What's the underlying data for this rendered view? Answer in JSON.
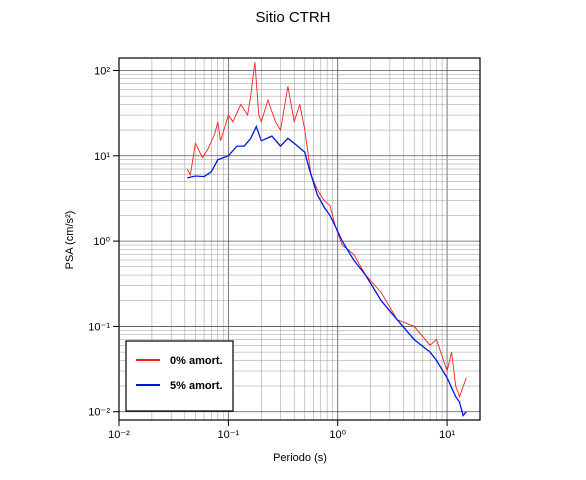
{
  "chart_data": {
    "type": "line",
    "title": "Sitio CTRH",
    "x_label": "Periodo (s)",
    "y_label": "PSA (cm/s²)",
    "log_x": true,
    "log_y": true,
    "grid": "major+minor",
    "legend": "lower left",
    "xlim": [
      0.01,
      20
    ],
    "ylim": [
      0.008,
      140
    ],
    "xticks": [
      {
        "value": 0.01,
        "label": "10⁻²"
      },
      {
        "value": 0.1,
        "label": "10⁻¹"
      },
      {
        "value": 1,
        "label": "10⁰"
      },
      {
        "value": 10,
        "label": "10¹"
      }
    ],
    "yticks": [
      {
        "value": 0.01,
        "label": "10⁻²"
      },
      {
        "value": 0.1,
        "label": "10⁻¹"
      },
      {
        "value": 1,
        "label": "10⁰"
      },
      {
        "value": 10,
        "label": "10¹"
      },
      {
        "value": 100,
        "label": "10²"
      }
    ],
    "series": [
      {
        "name": "0% amort.",
        "color": "#ff2020",
        "x": [
          0.042,
          0.045,
          0.05,
          0.058,
          0.065,
          0.075,
          0.08,
          0.085,
          0.1,
          0.11,
          0.13,
          0.15,
          0.16,
          0.175,
          0.19,
          0.2,
          0.23,
          0.27,
          0.3,
          0.35,
          0.4,
          0.45,
          0.5,
          0.57,
          0.65,
          0.75,
          0.85,
          0.95,
          1.1,
          1.4,
          1.8,
          2.5,
          3.5,
          5,
          7,
          8,
          10,
          11,
          12,
          13,
          15
        ],
        "values": [
          7,
          6,
          14,
          9.5,
          12,
          18,
          25,
          15,
          30,
          25,
          40,
          30,
          50,
          125,
          30,
          25,
          45,
          25,
          20,
          65,
          25,
          40,
          20,
          6,
          4,
          3,
          2.6,
          1.5,
          0.9,
          0.7,
          0.4,
          0.25,
          0.12,
          0.1,
          0.06,
          0.07,
          0.03,
          0.05,
          0.02,
          0.015,
          0.025
        ]
      },
      {
        "name": "5% amort.",
        "color": "#0018e0",
        "x": [
          0.042,
          0.05,
          0.06,
          0.07,
          0.08,
          0.1,
          0.12,
          0.14,
          0.16,
          0.18,
          0.2,
          0.25,
          0.3,
          0.35,
          0.4,
          0.5,
          0.55,
          0.65,
          0.75,
          0.85,
          0.95,
          1.1,
          1.4,
          1.8,
          2.5,
          3.5,
          5,
          7,
          8,
          10,
          12,
          13,
          14,
          15
        ],
        "values": [
          5.5,
          5.8,
          5.7,
          6.5,
          9,
          10,
          13,
          13,
          16,
          22,
          15,
          17,
          13,
          16,
          14,
          11,
          7,
          3.5,
          2.5,
          2,
          1.5,
          1.0,
          0.6,
          0.4,
          0.2,
          0.12,
          0.07,
          0.05,
          0.04,
          0.025,
          0.015,
          0.013,
          0.009,
          0.01
        ]
      }
    ]
  }
}
